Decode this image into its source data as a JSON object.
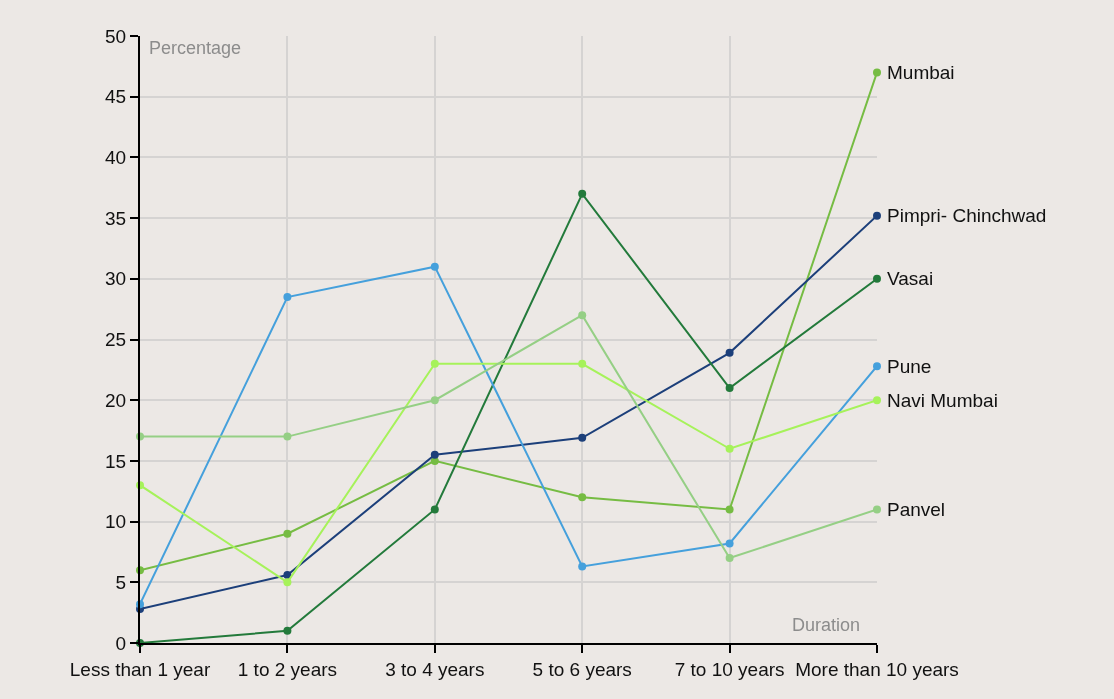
{
  "chart_data": {
    "type": "line",
    "xlabel": "Duration",
    "ylabel": "Percentage",
    "categories": [
      "Less than 1 year",
      "1 to 2 years",
      "3 to 4 years",
      "5 to 6 years",
      "7 to 10 years",
      "More than 10 years"
    ],
    "series": [
      {
        "name": "Mumbai",
        "color": "#76bc43",
        "values": [
          6,
          9,
          15,
          12,
          11,
          47
        ]
      },
      {
        "name": "Pimpri- Chinchwad",
        "color": "#1c3f7a",
        "values": [
          2.8,
          5.6,
          15.5,
          16.9,
          23.9,
          35.2
        ]
      },
      {
        "name": "Vasai",
        "color": "#237a3b",
        "values": [
          0,
          1,
          11,
          37,
          21,
          30
        ]
      },
      {
        "name": "Pune",
        "color": "#45a0dc",
        "values": [
          3.2,
          28.5,
          31,
          6.3,
          8.2,
          22.8
        ]
      },
      {
        "name": "Navi Mumbai",
        "color": "#a6f25a",
        "values": [
          13,
          5,
          23,
          23,
          16,
          20
        ]
      },
      {
        "name": "Panvel",
        "color": "#95cf85",
        "values": [
          17,
          17,
          20,
          27,
          7,
          11
        ]
      }
    ],
    "ylim": [
      0,
      50
    ],
    "yticks": [
      0,
      5,
      10,
      15,
      20,
      25,
      30,
      35,
      40,
      45,
      50
    ],
    "grid": true,
    "legend": false,
    "marker": "circle",
    "line_style": "solid"
  }
}
